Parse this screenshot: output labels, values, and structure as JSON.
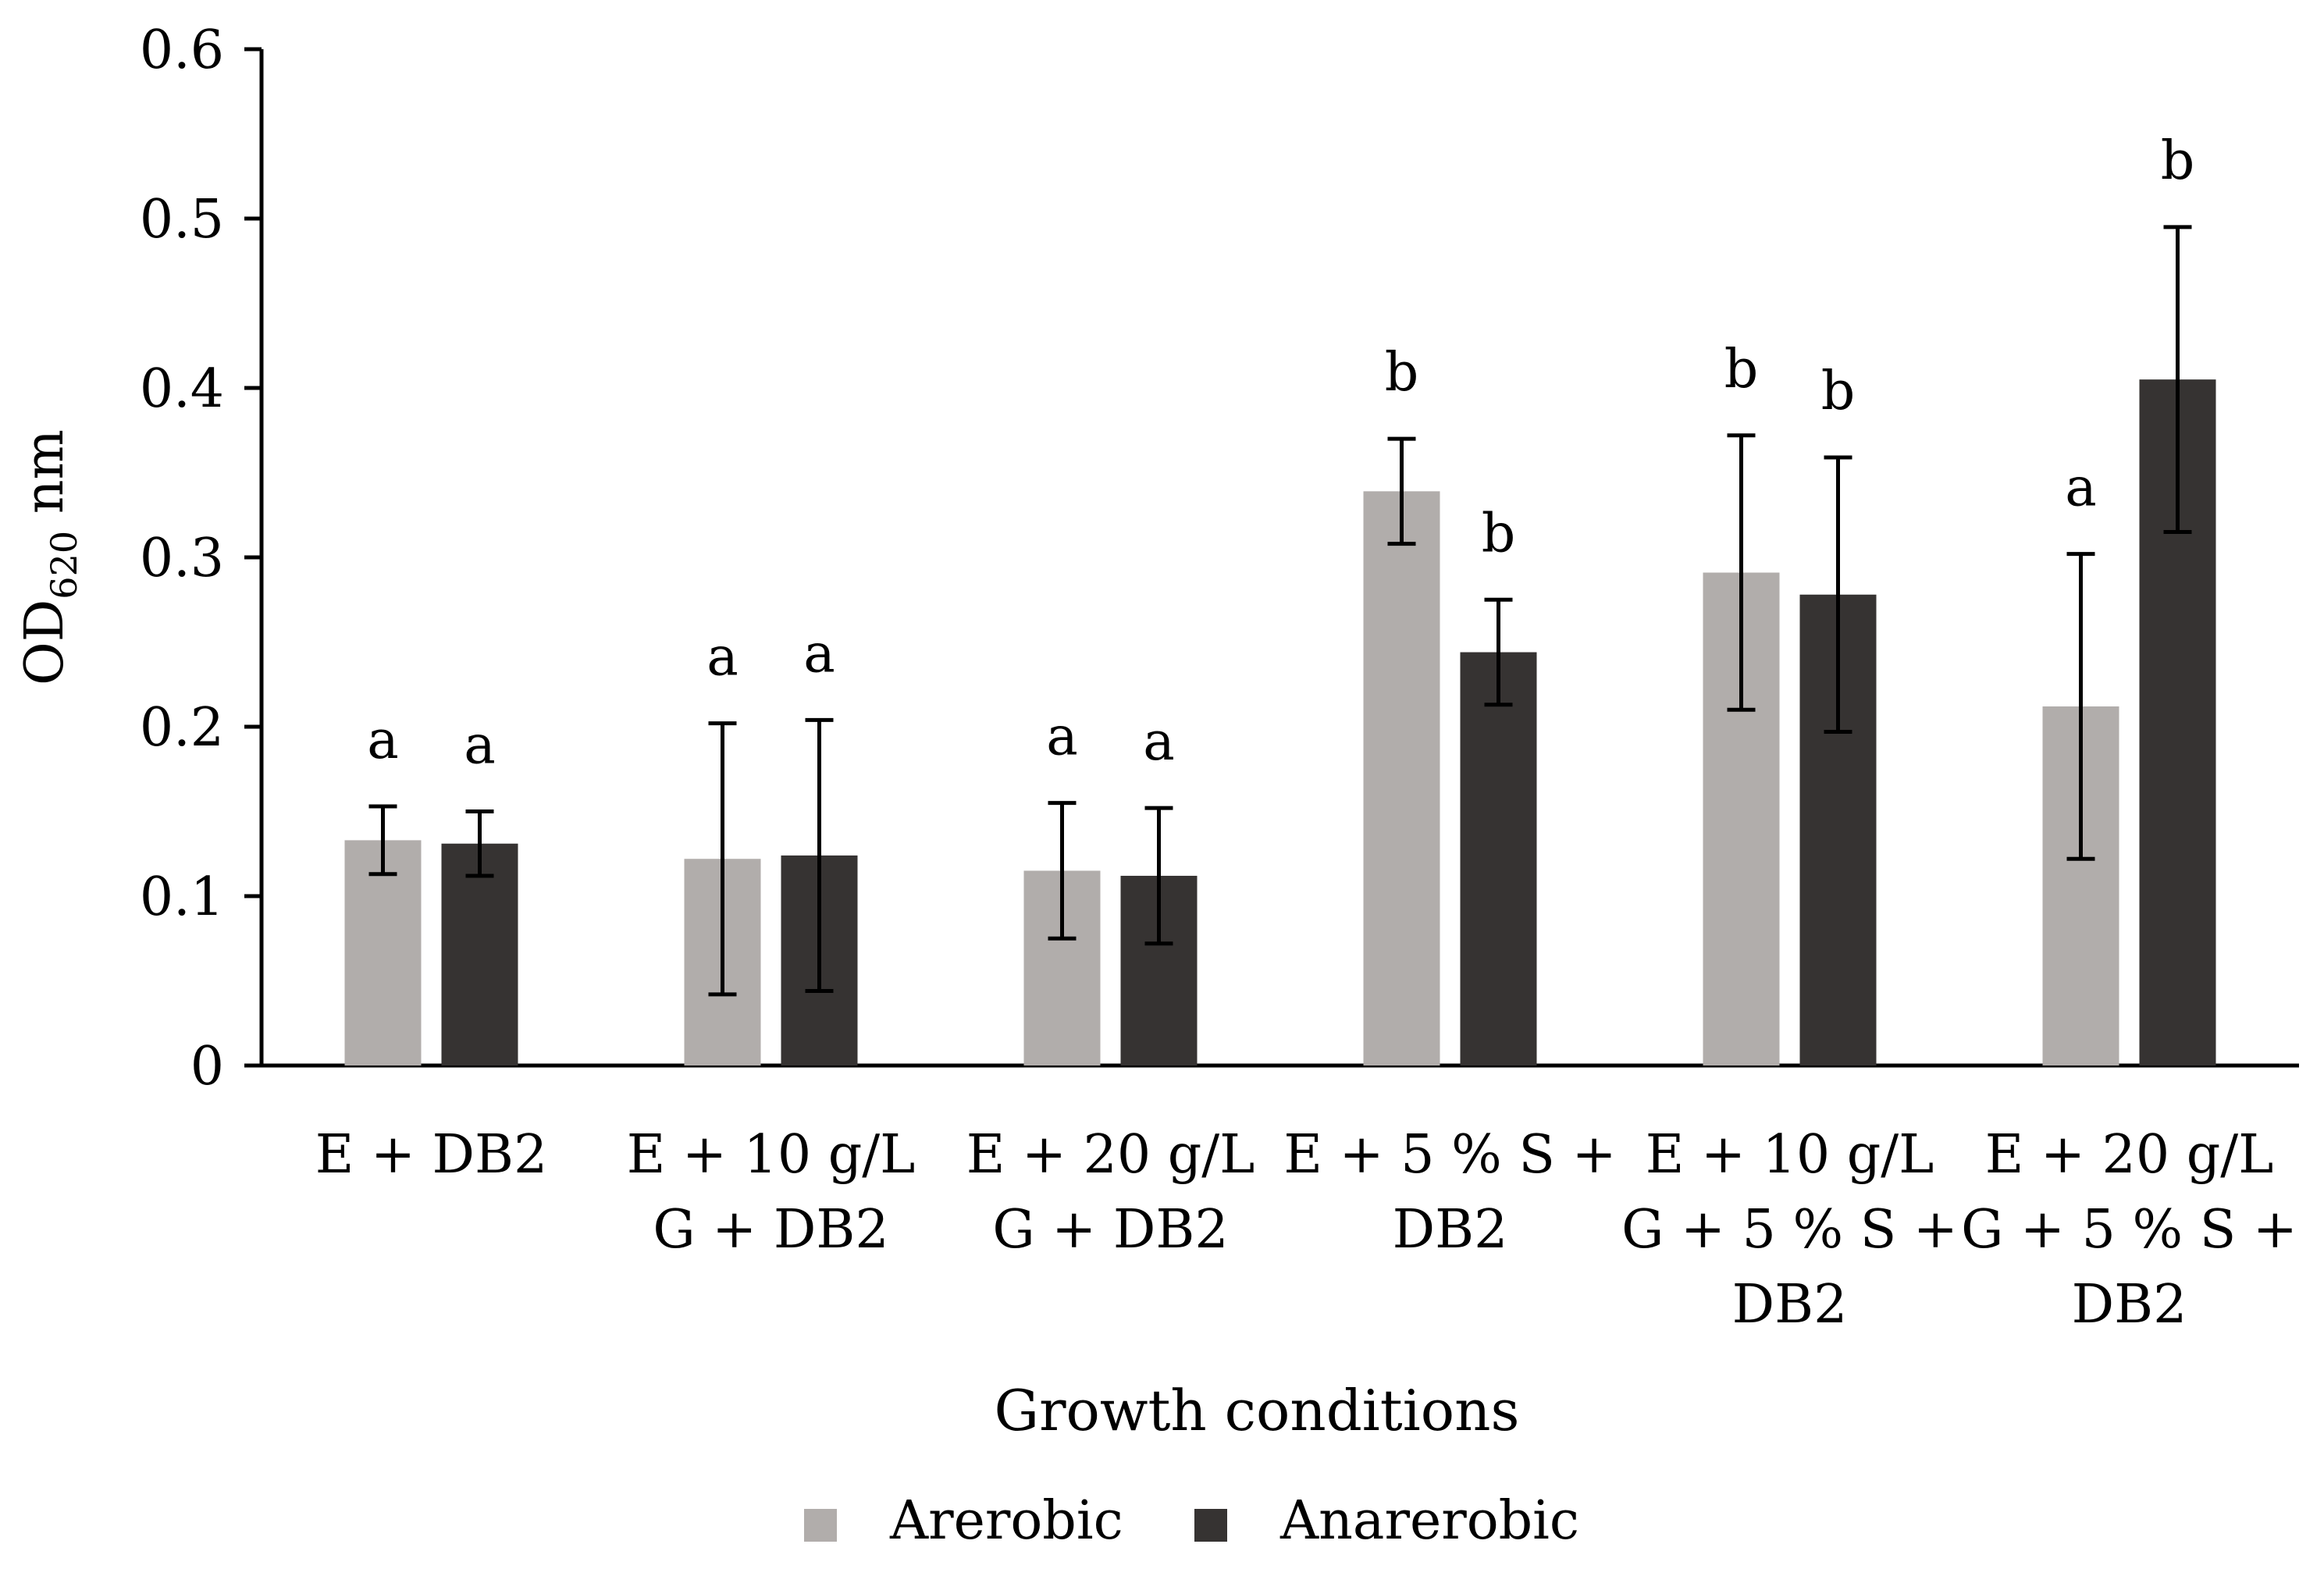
{
  "chart_data": {
    "type": "bar",
    "title": "",
    "xlabel": "Growth conditions",
    "ylabel": "OD620 nm",
    "ylabel_main": "OD",
    "ylabel_sub": "620",
    "ylabel_unit": " nm",
    "ylim": [
      0,
      0.6
    ],
    "yticks": [
      "0",
      "0.1",
      "0.2",
      "0.3",
      "0.4",
      "0.5",
      "0.6"
    ],
    "legend_position": "bottom-center",
    "categories": [
      [
        "E + DB2"
      ],
      [
        "E + 10 g/L",
        "G + DB2"
      ],
      [
        "E + 20 g/L",
        "G + DB2"
      ],
      [
        "E + 5 % S +",
        "DB2"
      ],
      [
        "E + 10 g/L",
        "G + 5 % S +",
        "DB2"
      ],
      [
        "E + 20 g/L",
        "G + 5 % S +",
        "DB2"
      ]
    ],
    "series": [
      {
        "name": "Arerobic",
        "color": "#b1adab",
        "values": [
          0.133,
          0.122,
          0.115,
          0.339,
          0.291,
          0.212
        ],
        "errors": [
          0.02,
          0.08,
          0.04,
          0.031,
          0.081,
          0.09
        ],
        "letters": [
          "a",
          "a",
          "a",
          "b",
          "b",
          "a"
        ]
      },
      {
        "name": "Anarerobic",
        "color": "#363332",
        "values": [
          0.131,
          0.124,
          0.112,
          0.244,
          0.278,
          0.405
        ],
        "errors": [
          0.019,
          0.08,
          0.04,
          0.031,
          0.081,
          0.09
        ],
        "letters": [
          "a",
          "a",
          "a",
          "b",
          "b",
          "b"
        ]
      }
    ]
  }
}
